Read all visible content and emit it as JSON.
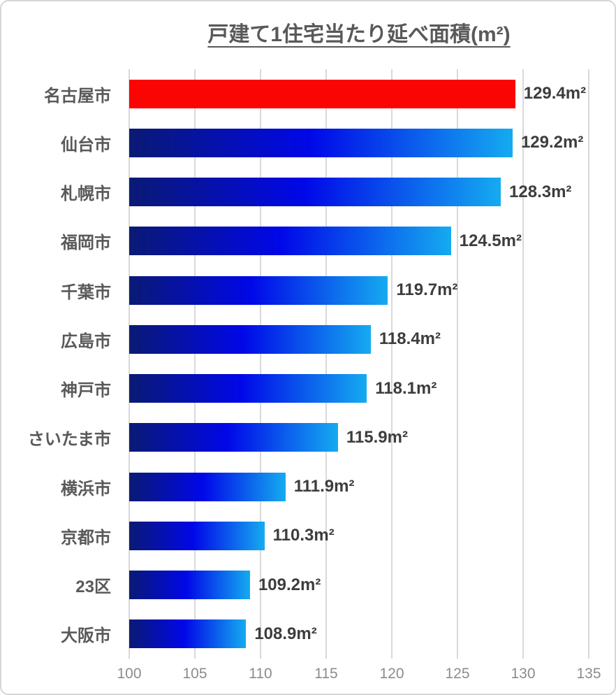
{
  "chart_data": {
    "type": "bar",
    "orientation": "horizontal",
    "title": "戸建て1住宅当たり延べ面積(m²)",
    "categories": [
      "名古屋市",
      "仙台市",
      "札幌市",
      "福岡市",
      "千葉市",
      "広島市",
      "神戸市",
      "さいたま市",
      "横浜市",
      "京都市",
      "23区",
      "大阪市"
    ],
    "values": [
      129.4,
      129.2,
      128.3,
      124.5,
      119.7,
      118.4,
      118.1,
      115.9,
      111.9,
      110.3,
      109.2,
      108.9
    ],
    "value_labels": [
      "129.4m²",
      "129.2m²",
      "128.3m²",
      "124.5m²",
      "119.7m²",
      "118.4m²",
      "118.1m²",
      "115.9m²",
      "111.9m²",
      "110.3m²",
      "109.2m²",
      "108.9m²"
    ],
    "unit": "m²",
    "xlim": [
      100,
      135
    ],
    "xticks": [
      "100",
      "105",
      "110",
      "115",
      "120",
      "125",
      "130",
      "135"
    ],
    "grid": true,
    "legend": false,
    "highlight": {
      "index": 0,
      "category": "名古屋市",
      "color": "#fb0404"
    },
    "colors": {
      "bar_gradient_start": "#0a1a74",
      "bar_gradient_mid": "#0007e8",
      "bar_gradient_end": "#15abf0",
      "gridline": "#d9d9d9",
      "title_text": "#595959",
      "category_text": "#595959",
      "value_text": "#3d3d3d",
      "tick_text": "#8c8c8c",
      "border": "#d6d6d6"
    }
  }
}
